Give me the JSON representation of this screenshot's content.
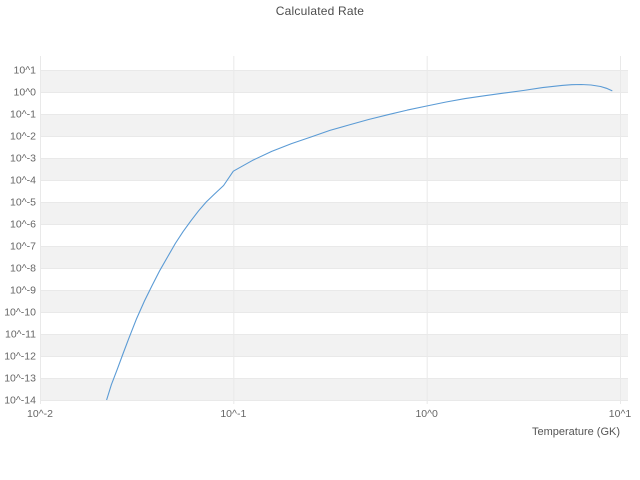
{
  "chart_data": {
    "type": "line",
    "title": "Calculated Rate",
    "xlabel": "Temperature (GK)",
    "ylabel": "",
    "x_scale": "log",
    "y_scale": "log",
    "xlim": [
      0.01,
      10
    ],
    "ylim": [
      1e-14,
      10
    ],
    "grid": true,
    "legend": "none",
    "x_ticks": [
      {
        "e": -2,
        "label": "10^-2"
      },
      {
        "e": -1,
        "label": "10^-1"
      },
      {
        "e": 0,
        "label": "10^0"
      },
      {
        "e": 1,
        "label": "10^1"
      }
    ],
    "y_ticks": [
      {
        "e": 1,
        "label": "10^1"
      },
      {
        "e": 0,
        "label": "10^0"
      },
      {
        "e": -1,
        "label": "10^-1"
      },
      {
        "e": -2,
        "label": "10^-2"
      },
      {
        "e": -3,
        "label": "10^-3"
      },
      {
        "e": -4,
        "label": "10^-4"
      },
      {
        "e": -5,
        "label": "10^-5"
      },
      {
        "e": -6,
        "label": "10^-6"
      },
      {
        "e": -7,
        "label": "10^-7"
      },
      {
        "e": -8,
        "label": "10^-8"
      },
      {
        "e": -9,
        "label": "10^-9"
      },
      {
        "e": -10,
        "label": "10^-10"
      },
      {
        "e": -11,
        "label": "10^-11"
      },
      {
        "e": -12,
        "label": "10^-12"
      },
      {
        "e": -13,
        "label": "10^-13"
      },
      {
        "e": -14,
        "label": "10^-14"
      }
    ],
    "series": [
      {
        "name": "Calculated Rate",
        "color": "#5b9bd5",
        "x": [
          0.0221,
          0.0234,
          0.0251,
          0.0269,
          0.0288,
          0.0316,
          0.0347,
          0.038,
          0.0417,
          0.0457,
          0.0501,
          0.055,
          0.0603,
          0.0661,
          0.0724,
          0.0794,
          0.0891,
          0.1,
          0.126,
          0.158,
          0.2,
          0.251,
          0.316,
          0.398,
          0.501,
          0.631,
          0.794,
          1.0,
          1.26,
          1.58,
          2.0,
          2.51,
          3.16,
          3.98,
          5.01,
          5.62,
          6.31,
          7.08,
          7.94,
          8.51,
          9.12
        ],
        "y": [
          1e-14,
          5e-14,
          2.5e-13,
          1.3e-12,
          6.3e-12,
          5e-11,
          3.2e-10,
          1.6e-09,
          7.9e-09,
          3.2e-08,
          1.3e-07,
          4.5e-07,
          1.4e-06,
          4e-06,
          1e-05,
          2.2e-05,
          5.6e-05,
          0.00025,
          0.00079,
          0.002,
          0.0045,
          0.0089,
          0.018,
          0.032,
          0.056,
          0.093,
          0.15,
          0.23,
          0.35,
          0.5,
          0.68,
          0.89,
          1.17,
          1.58,
          2.0,
          2.14,
          2.19,
          2.09,
          1.78,
          1.48,
          1.12
        ]
      }
    ]
  },
  "colors": {
    "background": "#ffffff",
    "band": "#f2f2f2",
    "grid": "#e9e9e9",
    "tick_label": "#666666",
    "axis_label": "#555555",
    "title": "#4d4d4d",
    "line": "#5b9bd5"
  }
}
